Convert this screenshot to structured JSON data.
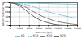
{
  "chart_data": {
    "type": "line",
    "xlabel": "Pressure (psi)",
    "ylabel": "Volume Survival (%)",
    "x": [
      0,
      1000,
      2000,
      3000,
      4000,
      5000,
      6000,
      7000,
      8000,
      9000,
      10000,
      11000,
      12000,
      13000,
      14000
    ],
    "series": [
      {
        "name": "K1",
        "color": "#5bbcd6",
        "line_style": "solid",
        "values": [
          100,
          99.5,
          99,
          98.5,
          98,
          97.5,
          97,
          96.5,
          96,
          95.5,
          95,
          94.5,
          94,
          93.5,
          93
        ]
      },
      {
        "name": "K15",
        "color": "#5bbcd6",
        "line_style": "dashed",
        "values": [
          100,
          99,
          97,
          93,
          88,
          82,
          75,
          68,
          61,
          55,
          50,
          45,
          41,
          37,
          34
        ]
      },
      {
        "name": "K20",
        "color": "#606060",
        "line_style": "solid",
        "values": [
          100,
          98,
          93,
          84,
          72,
          60,
          49,
          39,
          31,
          24,
          18,
          14,
          11,
          8,
          6
        ]
      },
      {
        "name": "K25",
        "color": "#404040",
        "line_style": "solid",
        "values": [
          100,
          96,
          87,
          72,
          55,
          40,
          28,
          19,
          13,
          8,
          5,
          4,
          3,
          2,
          2
        ]
      }
    ],
    "xlim": [
      0,
      14000
    ],
    "ylim": [
      0,
      100
    ],
    "xticks": [
      0,
      2000,
      4000,
      6000,
      8000,
      10000,
      12000,
      14000
    ],
    "yticks": [
      0,
      20,
      40,
      60,
      80,
      100
    ],
    "grid": true,
    "legend": "bottom"
  }
}
